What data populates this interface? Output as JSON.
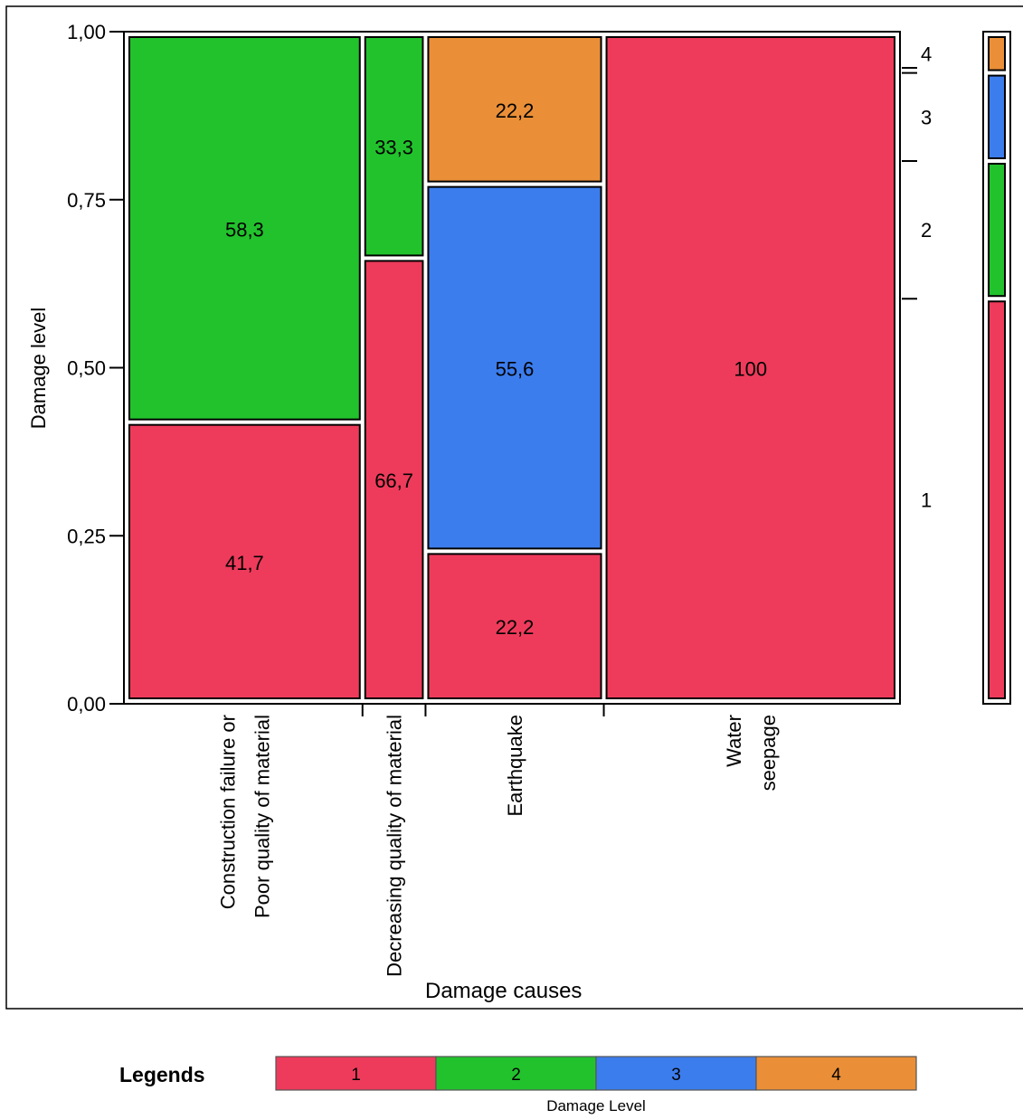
{
  "chart_data": {
    "type": "mosaic",
    "xlabel": "Damage causes",
    "ylabel": "Damage level",
    "ylim": [
      0,
      1
    ],
    "y_ticks": [
      {
        "value": 0,
        "label": "0,00"
      },
      {
        "value": 0.25,
        "label": "0,25"
      },
      {
        "value": 0.5,
        "label": "0,50"
      },
      {
        "value": 0.75,
        "label": "0,75"
      },
      {
        "value": 1,
        "label": "1,00"
      }
    ],
    "columns": [
      {
        "lines": [
          "Construction failure or",
          "Poor quality of material"
        ],
        "width_share": 0.3077,
        "segments": [
          {
            "level": "1",
            "percent": 41.7,
            "label": "41,7"
          },
          {
            "level": "2",
            "percent": 58.3,
            "label": "58,3"
          }
        ]
      },
      {
        "lines": [
          "Decreasing quality of material"
        ],
        "width_share": 0.0769,
        "segments": [
          {
            "level": "1",
            "percent": 66.7,
            "label": "66,7"
          },
          {
            "level": "2",
            "percent": 33.3,
            "label": "33,3"
          }
        ]
      },
      {
        "lines": [
          "Earthquake"
        ],
        "width_share": 0.2308,
        "segments": [
          {
            "level": "1",
            "percent": 22.2,
            "label": "22,2"
          },
          {
            "level": "3",
            "percent": 55.6,
            "label": "55,6"
          },
          {
            "level": "4",
            "percent": 22.2,
            "label": "22,2"
          }
        ]
      },
      {
        "lines": [
          "Water",
          "seepage"
        ],
        "width_share": 0.3846,
        "segments": [
          {
            "level": "1",
            "percent": 100,
            "label": "100"
          }
        ]
      }
    ],
    "marginal": [
      {
        "level": "1",
        "share": 0.6154
      },
      {
        "level": "2",
        "share": 0.2051
      },
      {
        "level": "3",
        "share": 0.1282
      },
      {
        "level": "4",
        "share": 0.0513
      }
    ],
    "level_colors": {
      "1": "#ee3b5b",
      "2": "#22c22d",
      "3": "#3c7ded",
      "4": "#ea8f37"
    },
    "legend": {
      "title": "Legends",
      "caption": "Damage Level",
      "items": [
        "1",
        "2",
        "3",
        "4"
      ]
    }
  }
}
